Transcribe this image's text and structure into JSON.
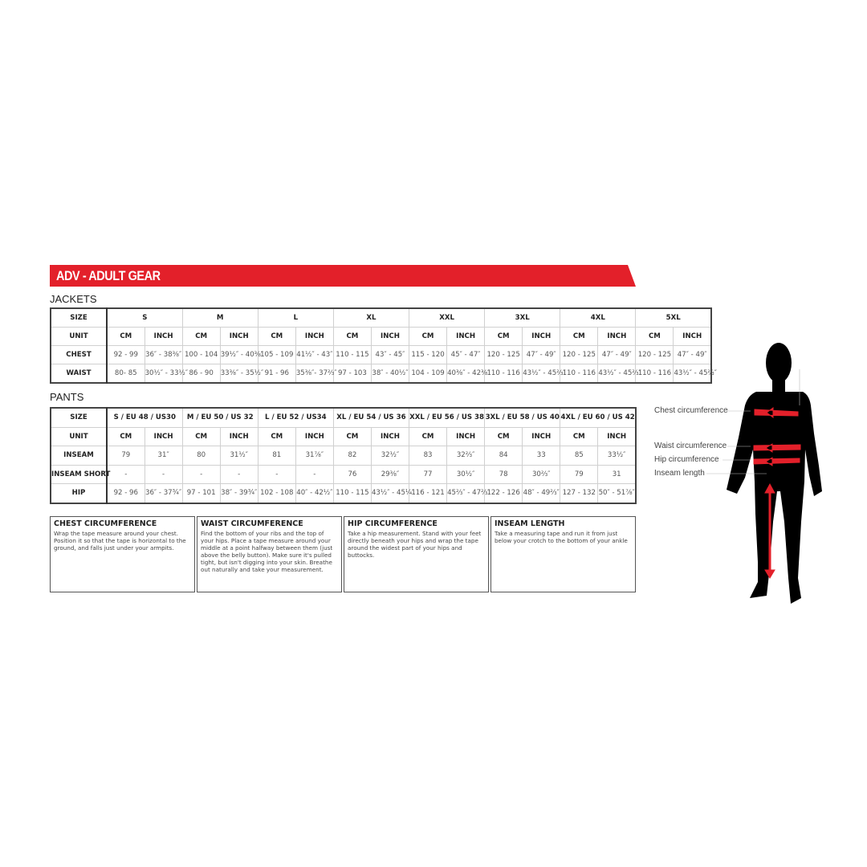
{
  "banner": {
    "title": "ADV - ADULT GEAR",
    "color": "#e3202a"
  },
  "jackets": {
    "title": "JACKETS",
    "size_label": "SIZE",
    "unit_label": "UNIT",
    "sizes": [
      "S",
      "M",
      "L",
      "XL",
      "XXL",
      "3XL",
      "4XL",
      "5XL"
    ],
    "units": [
      "CM",
      "INCH"
    ],
    "rows": [
      {
        "label": "CHEST",
        "values": [
          "92 - 99",
          "36″ - 38⅜″",
          "100 - 104",
          "39½″ - 40⅜″",
          "105 - 109",
          "41½″ - 43″",
          "110 - 115",
          "43″ - 45″",
          "115 - 120",
          "45″ - 47″",
          "120 - 125",
          "47″ - 49″",
          "120 - 125",
          "47″ - 49″",
          "120 - 125",
          "47″ - 49″"
        ]
      },
      {
        "label": "WAIST",
        "values": [
          "80- 85",
          "30½″ - 33½″",
          "86 - 90",
          "33⅜″ - 35½″",
          "91 - 96",
          "35⅜″- 37⅔″",
          "97 - 103",
          "38″ - 40½″",
          "104 - 109",
          "40⅜″ - 42⅜″",
          "110 - 116",
          "43½″ - 45⅔″",
          "110 - 116",
          "43½″ - 45⅔″",
          "110 - 116",
          "43½″ - 45⅔″"
        ]
      }
    ]
  },
  "pants": {
    "title": "PANTS",
    "size_label": "SIZE",
    "unit_label": "UNIT",
    "sizes": [
      "S / EU 48 / US30",
      "M / EU 50 / US 32",
      "L / EU 52 / US34",
      "XL / EU 54 / US 36",
      "XXL / EU 56 / US 38",
      "3XL / EU 58 / US 40",
      "4XL / EU 60 / US 42"
    ],
    "units": [
      "CM",
      "INCH"
    ],
    "rows": [
      {
        "label": "INSEAM",
        "values": [
          "79",
          "31″",
          "80",
          "31½″",
          "81",
          "31⅞″",
          "82",
          "32½″",
          "83",
          "32⅔″",
          "84",
          "33",
          "85",
          "33½″"
        ]
      },
      {
        "label": "INSEAM SHORT",
        "values": [
          "-",
          "-",
          "-",
          "-",
          "-",
          "-",
          "76",
          "29⅜″",
          "77",
          "30½″",
          "78",
          "30⅔″",
          "79",
          "31"
        ]
      },
      {
        "label": "HIP",
        "values": [
          "92 - 96",
          "36″ - 37¾″",
          "97 - 101",
          "38″ - 39¾″",
          "102 - 108",
          "40″ - 42½″",
          "110 - 115",
          "43½″ - 45¼″",
          "116 - 121",
          "45⅔″ - 47⅔″",
          "122 - 126",
          "48″ - 49⅔″",
          "127 - 132",
          "50″ - 51⅞″"
        ]
      }
    ]
  },
  "guides": [
    {
      "title": "CHEST CIRCUMFERENCE",
      "text": "Wrap the tape measure around your chest. Position it so that the tape is horizontal to the ground, and falls just under your armpits."
    },
    {
      "title": "WAIST CIRCUMFERENCE",
      "text": "Find the bottom of your ribs and the top of your hips. Place a tape measure around your middle at a point halfway between them (just above the belly button). Make sure it's pulled tight, but isn't digging into your skin. Breathe out naturally and take your measurement."
    },
    {
      "title": "HIP CIRCUMFERENCE",
      "text": "Take a hip measurement. Stand with your feet directly beneath your hips and wrap the tape around the widest part of your hips and buttocks."
    },
    {
      "title": "INSEAM LENGTH",
      "text": "Take a measuring tape and run it from just below your crotch to the bottom of your ankle"
    }
  ],
  "figure": {
    "labels": {
      "chest": "Chest circumference",
      "waist": "Waist circumference",
      "hip": "Hip circumference",
      "inseam": "Inseam length"
    },
    "silhouette_color": "#000000",
    "marker_color": "#e3202a"
  }
}
